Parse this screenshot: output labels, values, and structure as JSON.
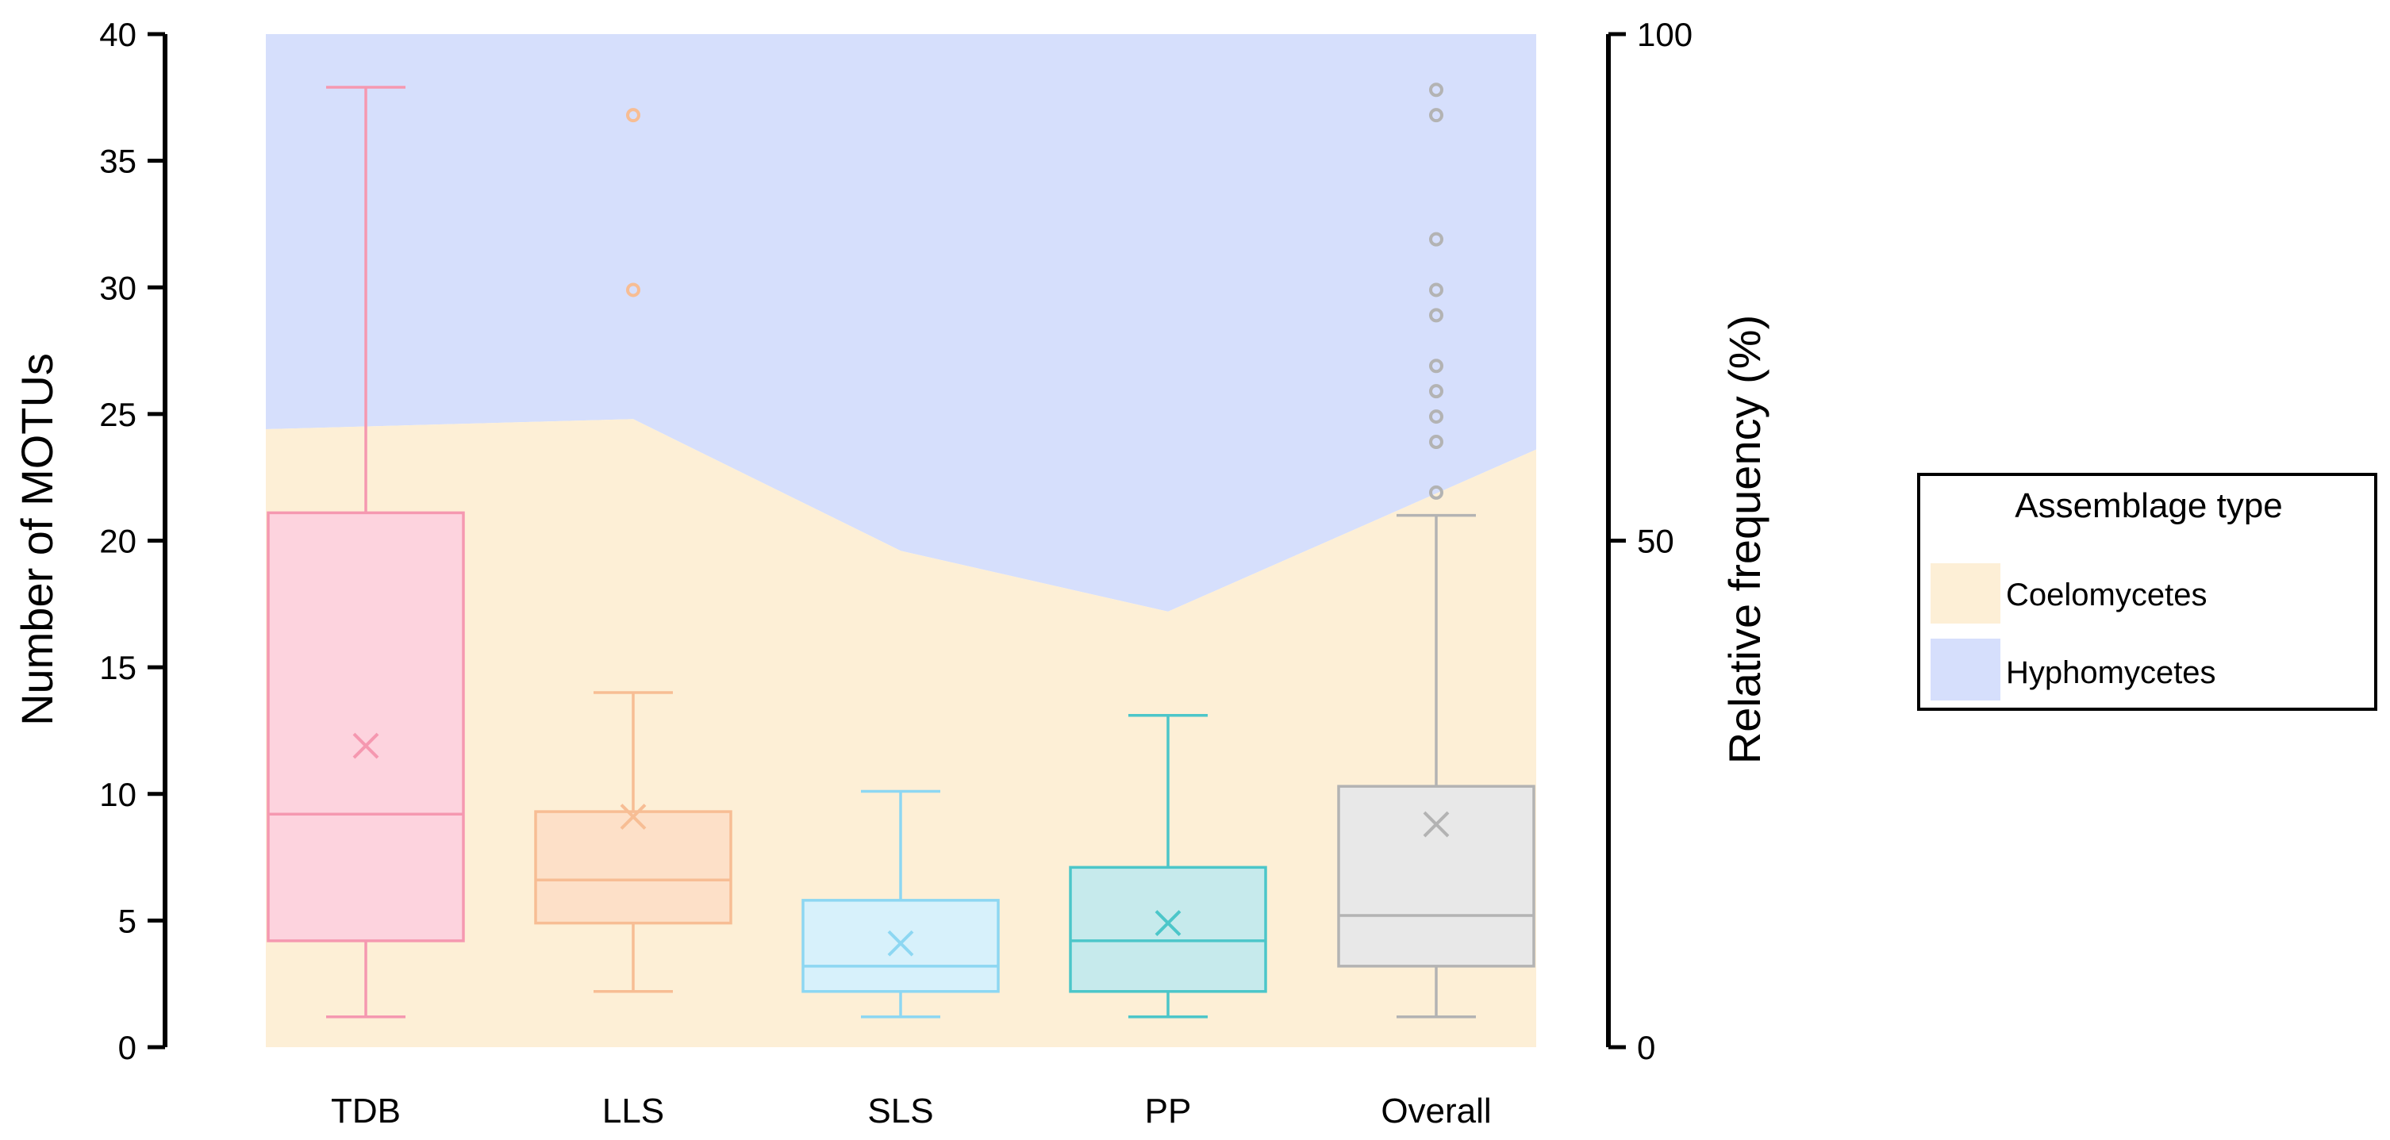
{
  "chart_data": {
    "type": "box",
    "ylabel_left": "Number of MOTUs",
    "ylabel_right": "Relative frequency (%)",
    "ylim_left": [
      0,
      40
    ],
    "yticks_left": [
      0,
      5,
      10,
      15,
      20,
      25,
      30,
      35,
      40
    ],
    "ylim_right": [
      0,
      100
    ],
    "yticks_right": [
      0,
      50,
      100
    ],
    "categories": [
      "TDB",
      "LLS",
      "SLS",
      "PP",
      "Overall"
    ],
    "boxes": [
      {
        "name": "TDB",
        "whisker_low": 1.2,
        "q1": 4.2,
        "median": 9.2,
        "q3": 21.1,
        "whisker_high": 37.9,
        "mean": 11.9,
        "outliers": [],
        "color": "#f598b0",
        "fill": "#fdd3de"
      },
      {
        "name": "LLS",
        "whisker_low": 2.2,
        "q1": 4.9,
        "median": 6.6,
        "q3": 9.3,
        "whisker_high": 14.0,
        "mean": 9.1,
        "outliers": [
          29.9,
          36.8
        ],
        "color": "#f7bd94",
        "fill": "#fde0c8"
      },
      {
        "name": "SLS",
        "whisker_low": 1.2,
        "q1": 2.2,
        "median": 3.2,
        "q3": 5.8,
        "whisker_high": 10.1,
        "mean": 4.1,
        "outliers": [],
        "color": "#8dd7f2",
        "fill": "#d7f1fb"
      },
      {
        "name": "PP",
        "whisker_low": 1.2,
        "q1": 2.2,
        "median": 4.2,
        "q3": 7.1,
        "whisker_high": 13.1,
        "mean": 4.9,
        "outliers": [],
        "color": "#4cc6c9",
        "fill": "#c6eaec"
      },
      {
        "name": "Overall",
        "whisker_low": 1.2,
        "q1": 3.2,
        "median": 5.2,
        "q3": 10.3,
        "whisker_high": 21.0,
        "mean": 8.8,
        "outliers": [
          21.9,
          23.9,
          24.9,
          25.9,
          26.9,
          28.9,
          29.9,
          31.9,
          36.8,
          37.8
        ],
        "color": "#b3b3b3",
        "fill": "#e8e8e8"
      }
    ],
    "area_series": {
      "unit": "Relative frequency (%)",
      "coelomycetes_percent": [
        61,
        62,
        49,
        43,
        59
      ],
      "hyphomycetes_percent": [
        39,
        38,
        51,
        57,
        41
      ]
    },
    "legend": {
      "title": "Assemblage type",
      "entries": [
        {
          "label": "Coelomycetes",
          "color": "#fdefd6"
        },
        {
          "label": "Hyphomycetes",
          "color": "#d6dffc"
        }
      ],
      "placement": "right"
    }
  }
}
